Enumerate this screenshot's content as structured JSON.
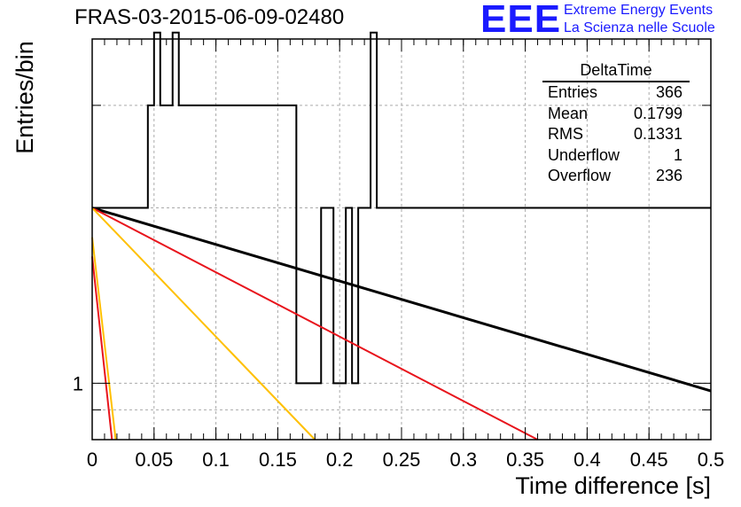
{
  "header": {
    "title": "FRAS-03-2015-06-09-02480",
    "logo_text": "EEE",
    "logo_line1": "Extreme Energy Events",
    "logo_line2": "La Scienza nelle Scuole"
  },
  "stats": {
    "title": "DeltaTime",
    "rows": [
      {
        "label": "Entries",
        "value": "366"
      },
      {
        "label": "Mean",
        "value": "0.1799"
      },
      {
        "label": "RMS",
        "value": "0.1331"
      },
      {
        "label": "Underflow",
        "value": "1"
      },
      {
        "label": "Overflow",
        "value": "236"
      }
    ]
  },
  "colors": {
    "histogram": "#000000",
    "fit_black": "#000000",
    "fit_red": "#e8141c",
    "fit_orange": "#ffc000",
    "logo_blue": "#1a1aff"
  },
  "chart_data": {
    "type": "histogram",
    "title": "FRAS-03-2015-06-09-02480",
    "xlabel": "Time difference [s]",
    "ylabel": "Entries/bin",
    "xlim": [
      0,
      0.5
    ],
    "ylim": [
      0.8,
      3.9
    ],
    "yscale": "log",
    "grid": true,
    "x_ticks": [
      "0",
      "0.05",
      "0.1",
      "0.15",
      "0.2",
      "0.25",
      "0.3",
      "0.35",
      "0.4",
      "0.45",
      "0.5"
    ],
    "y_ticks": [
      "1"
    ],
    "bin_width": 0.005,
    "bin_edges_start": 0,
    "bin_counts": [
      2,
      2,
      2,
      2,
      2,
      2,
      2,
      2,
      2,
      3,
      4,
      3,
      3,
      4,
      3,
      3,
      3,
      3,
      3,
      3,
      3,
      3,
      3,
      3,
      3,
      3,
      3,
      3,
      3,
      3,
      3,
      3,
      3,
      1,
      1,
      1,
      1,
      2,
      2,
      1,
      1,
      2,
      1,
      2,
      2,
      4,
      2,
      2,
      2,
      2,
      2,
      2,
      2,
      2,
      2,
      2,
      2,
      2,
      2,
      2,
      2,
      2,
      2,
      2,
      2,
      2,
      2,
      2,
      2,
      2,
      2,
      2,
      2,
      2,
      2,
      2,
      2,
      2,
      2,
      2,
      2,
      2,
      2,
      2,
      2,
      2,
      2,
      2,
      2,
      2,
      2,
      2,
      2,
      2,
      2,
      2,
      2,
      2,
      2,
      2
    ],
    "fits": [
      {
        "color": "#000000",
        "points": [
          [
            0,
            2.0
          ],
          [
            0.5,
            0.97
          ]
        ]
      },
      {
        "color": "#e8141c",
        "points": [
          [
            0,
            2.0
          ],
          [
            0.36,
            0.8
          ]
        ]
      },
      {
        "color": "#ffc000",
        "points": [
          [
            0,
            2.0
          ],
          [
            0.18,
            0.8
          ]
        ]
      },
      {
        "color": "#ffc000",
        "points": [
          [
            0,
            1.78
          ],
          [
            0.019,
            0.8
          ]
        ]
      },
      {
        "color": "#e8141c",
        "points": [
          [
            0,
            1.65
          ],
          [
            0.016,
            0.8
          ]
        ]
      }
    ]
  }
}
